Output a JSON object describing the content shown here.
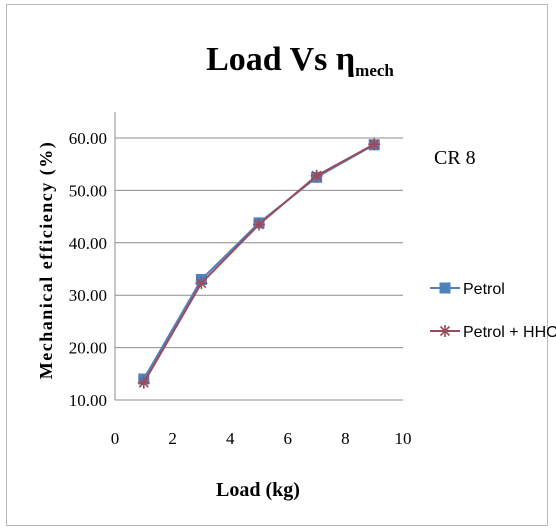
{
  "chart_data": {
    "type": "line",
    "title": "Load Vs η",
    "title_subscript": "mech",
    "annotation": "CR 8",
    "xlabel": "Load (kg)",
    "ylabel": "Mechanical efficiency (%)",
    "xlim": [
      0,
      10
    ],
    "ylim": [
      10,
      60
    ],
    "x_ticks": [
      "0",
      "2",
      "4",
      "6",
      "8",
      "10"
    ],
    "y_ticks": [
      "10.00",
      "20.00",
      "30.00",
      "40.00",
      "50.00",
      "60.00"
    ],
    "grid": "horizontal",
    "legend_position": "right",
    "series": [
      {
        "name": "Petrol",
        "color": "#4f81bd",
        "marker": "square",
        "x": [
          1,
          3,
          5,
          7,
          9
        ],
        "y": [
          14.0,
          33.0,
          43.8,
          52.5,
          58.7
        ]
      },
      {
        "name": "Petrol + HHO",
        "color": "#9b4b5a",
        "marker": "asterisk",
        "x": [
          1,
          3,
          5,
          7,
          9
        ],
        "y": [
          13.3,
          32.3,
          43.5,
          52.8,
          58.8
        ]
      }
    ]
  }
}
